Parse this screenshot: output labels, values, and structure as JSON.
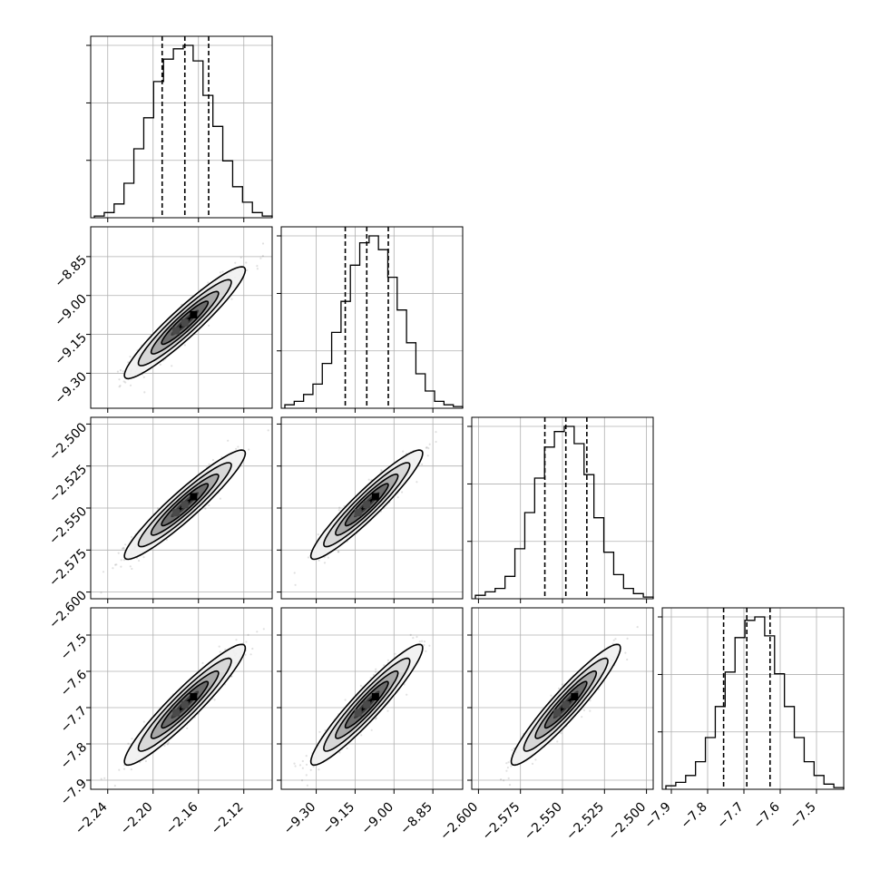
{
  "chart_data": {
    "type": "corner",
    "grid": true,
    "parameters": [
      {
        "mean": -2.172,
        "sigma": 0.0205,
        "range": [
          -2.255,
          -2.095
        ],
        "ticks": [
          -2.24,
          -2.2,
          -2.16,
          -2.12
        ],
        "tick_labels": [
          "−2.24",
          "−2.20",
          "−2.16",
          "−2.12"
        ],
        "quantiles": [
          -2.192,
          -2.172,
          -2.151
        ],
        "hist": [
          0.01,
          0.03,
          0.08,
          0.2,
          0.4,
          0.58,
          0.79,
          0.92,
          0.98,
          1.0,
          0.91,
          0.71,
          0.53,
          0.33,
          0.18,
          0.09,
          0.03,
          0.01
        ]
      },
      {
        "mean": -9.105,
        "sigma": 0.083,
        "range": [
          -9.435,
          -8.735
        ],
        "ticks": [
          -9.3,
          -9.15,
          -9.0,
          -8.85
        ],
        "tick_labels": [
          "−9.30",
          "−9.15",
          "−9.00",
          "−8.85"
        ],
        "quantiles": [
          -9.188,
          -9.105,
          -9.022
        ],
        "hist": [
          0.02,
          0.04,
          0.08,
          0.14,
          0.26,
          0.44,
          0.62,
          0.83,
          0.96,
          1.0,
          0.92,
          0.76,
          0.57,
          0.38,
          0.2,
          0.1,
          0.04,
          0.02,
          0.01
        ]
      },
      {
        "mean": -2.548,
        "sigma": 0.0125,
        "range": [
          -2.604,
          -2.496
        ],
        "ticks": [
          -2.6,
          -2.575,
          -2.55,
          -2.525,
          -2.5
        ],
        "tick_labels": [
          "−2.600",
          "−2.575",
          "−2.550",
          "−2.525",
          "−2.500"
        ],
        "quantiles": [
          -2.5605,
          -2.548,
          -2.5355
        ],
        "hist": [
          0.02,
          0.04,
          0.06,
          0.13,
          0.29,
          0.5,
          0.7,
          0.88,
          0.97,
          1.0,
          0.9,
          0.72,
          0.47,
          0.27,
          0.14,
          0.06,
          0.03,
          0.01
        ]
      },
      {
        "mean": -7.692,
        "sigma": 0.064,
        "range": [
          -7.925,
          -7.425
        ],
        "ticks": [
          -7.9,
          -7.8,
          -7.7,
          -7.6,
          -7.5
        ],
        "tick_labels": [
          "−7.9",
          "−7.8",
          "−7.7",
          "−7.6",
          "−7.5"
        ],
        "quantiles": [
          -7.756,
          -7.692,
          -7.628
        ],
        "hist": [
          0.02,
          0.04,
          0.08,
          0.16,
          0.3,
          0.48,
          0.68,
          0.88,
          0.98,
          1.0,
          0.89,
          0.67,
          0.48,
          0.3,
          0.16,
          0.08,
          0.03,
          0.01
        ]
      }
    ],
    "correlation": 0.94,
    "density_levels": [
      0.118,
      0.393,
      0.675,
      0.865
    ]
  }
}
